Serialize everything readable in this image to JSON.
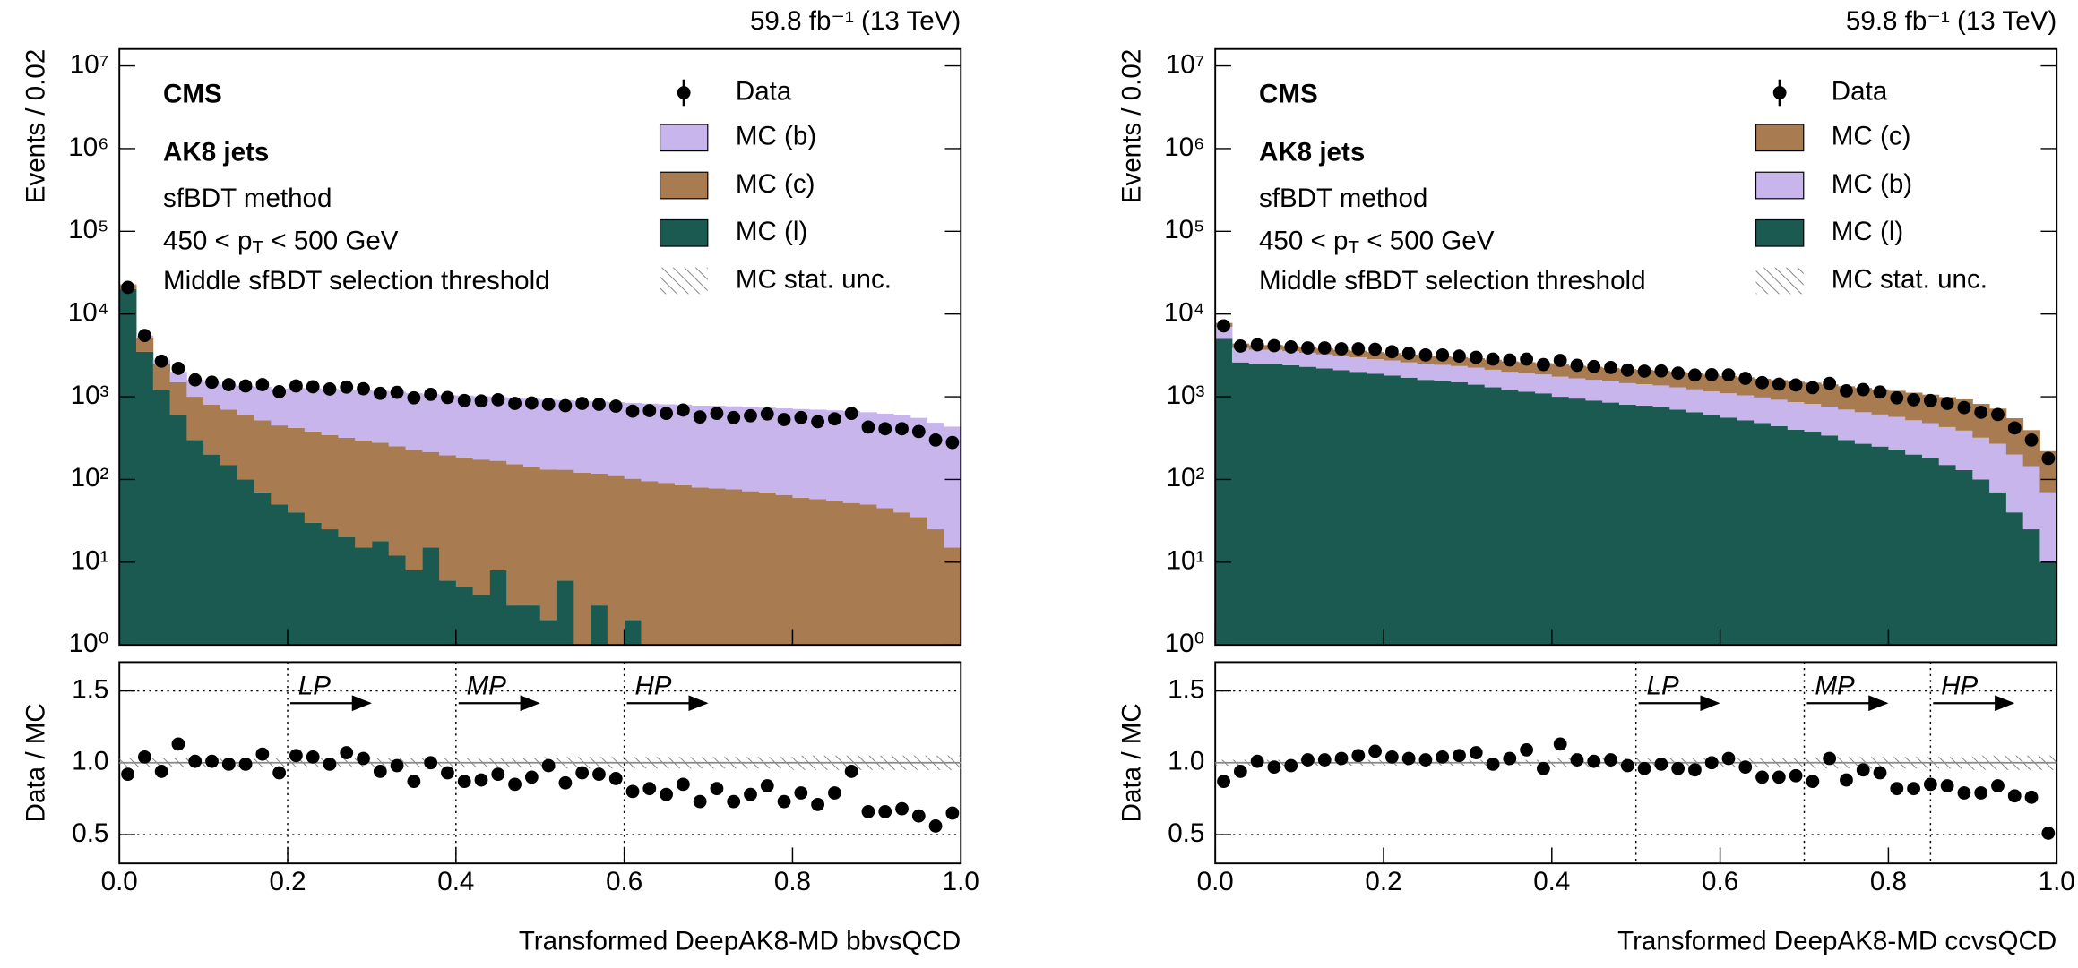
{
  "chart_data": [
    {
      "type": "histogram",
      "stacked": true,
      "yscale": "log",
      "lumi": "59.8 fb⁻¹ (13 TeV)",
      "experiment": "CMS",
      "jet_label": "AK8 jets",
      "method": "sfBDT method",
      "pt_text": [
        "450 < p",
        "T",
        " < 500 GeV"
      ],
      "selection": "Middle sfBDT selection threshold",
      "ylabel": "Events / 0.02",
      "xlabel": "Transformed DeepAK8-MD bbvsQCD",
      "bins": [
        0,
        0.02,
        0.04,
        0.06,
        0.08,
        0.1,
        0.12,
        0.14,
        0.16,
        0.18,
        0.2,
        0.22,
        0.24,
        0.26,
        0.28,
        0.3,
        0.32,
        0.34,
        0.36,
        0.38,
        0.4,
        0.42,
        0.44,
        0.46,
        0.48,
        0.5,
        0.52,
        0.54,
        0.56,
        0.58,
        0.6,
        0.62,
        0.64,
        0.66,
        0.68,
        0.7,
        0.72,
        0.74,
        0.76,
        0.78,
        0.8,
        0.82,
        0.84,
        0.86,
        0.88,
        0.9,
        0.92,
        0.94,
        0.96,
        0.98,
        1
      ],
      "xlim": [
        0,
        1
      ],
      "xticks": [
        {
          "value": 0,
          "label": "0.0"
        },
        0.2,
        0.4,
        0.6,
        0.8,
        {
          "value": 1,
          "label": "1.0"
        }
      ],
      "ylim": [
        1,
        16000000
      ],
      "yticks": [
        {
          "value": 1,
          "label": "10⁰"
        },
        {
          "value": 10,
          "label": "10¹"
        },
        {
          "value": 100,
          "label": "10²"
        },
        {
          "value": 1000,
          "label": "10³"
        },
        {
          "value": 10000,
          "label": "10⁴"
        },
        {
          "value": 100000,
          "label": "10⁵"
        },
        {
          "value": 1000000,
          "label": "10⁶"
        },
        {
          "value": 10000000,
          "label": "10⁷"
        }
      ],
      "series": [
        {
          "name": "MC (l)",
          "color": "#1b5a50",
          "values": [
            20000,
            3500,
            1200,
            600,
            300,
            200,
            150,
            100,
            70,
            50,
            40,
            30,
            25,
            20,
            15,
            18,
            12,
            8,
            15,
            6,
            5,
            4,
            8,
            3,
            3,
            2,
            6,
            1,
            3,
            0,
            2,
            0,
            1,
            0,
            0,
            0,
            1,
            0,
            0,
            0,
            0,
            0,
            0,
            0,
            0,
            0,
            0,
            0,
            0,
            0
          ]
        },
        {
          "name": "MC (c)",
          "color": "#a87b50",
          "values": [
            2500,
            1600,
            1300,
            900,
            700,
            600,
            550,
            500,
            450,
            400,
            380,
            350,
            320,
            300,
            280,
            260,
            240,
            220,
            200,
            190,
            180,
            170,
            160,
            150,
            140,
            130,
            125,
            120,
            115,
            110,
            100,
            95,
            90,
            85,
            80,
            78,
            75,
            72,
            70,
            65,
            60,
            58,
            55,
            52,
            50,
            45,
            40,
            35,
            25,
            15
          ]
        },
        {
          "name": "MC (b)",
          "color": "#c7b5ec",
          "values": [
            500,
            400,
            300,
            500,
            600,
            700,
            700,
            750,
            800,
            800,
            850,
            880,
            900,
            900,
            920,
            900,
            900,
            880,
            860,
            850,
            850,
            840,
            830,
            820,
            800,
            790,
            780,
            770,
            760,
            750,
            740,
            730,
            720,
            720,
            700,
            700,
            690,
            680,
            670,
            660,
            650,
            640,
            630,
            620,
            600,
            580,
            560,
            520,
            460,
            420
          ]
        }
      ],
      "data": {
        "name": "Data",
        "color": "#000000",
        "values": [
          21000,
          5500,
          2700,
          2200,
          1600,
          1500,
          1400,
          1350,
          1400,
          1150,
          1350,
          1320,
          1240,
          1310,
          1250,
          1100,
          1130,
          970,
          1070,
          980,
          900,
          890,
          920,
          830,
          840,
          810,
          780,
          830,
          810,
          770,
          670,
          680,
          630,
          690,
          570,
          630,
          560,
          590,
          620,
          530,
          560,
          500,
          540,
          630,
          430,
          410,
          410,
          380,
          300,
          280
        ]
      },
      "unc_label": "MC stat. unc.",
      "ratio": {
        "ylabel": "Data / MC",
        "ylim": [
          0.3,
          1.7
        ],
        "yticks": [
          0.5,
          {
            "value": 1,
            "label": "1.0"
          },
          1.5
        ],
        "grid": true,
        "values": [
          0.92,
          1.04,
          0.94,
          1.13,
          1.01,
          1.01,
          0.99,
          0.99,
          1.06,
          0.93,
          1.05,
          1.04,
          0.99,
          1.07,
          1.03,
          0.94,
          0.98,
          0.87,
          1.0,
          0.93,
          0.87,
          0.88,
          0.92,
          0.85,
          0.9,
          0.98,
          0.86,
          0.93,
          0.92,
          0.89,
          0.8,
          0.82,
          0.78,
          0.85,
          0.73,
          0.82,
          0.73,
          0.78,
          0.84,
          0.73,
          0.79,
          0.71,
          0.79,
          0.94,
          0.66,
          0.66,
          0.68,
          0.63,
          0.56,
          0.65
        ],
        "unc": [
          0.03,
          0.03,
          0.03,
          0.03,
          0.03,
          0.03,
          0.03,
          0.03,
          0.03,
          0.03,
          0.03,
          0.03,
          0.03,
          0.03,
          0.03,
          0.03,
          0.03,
          0.03,
          0.03,
          0.03,
          0.03,
          0.03,
          0.03,
          0.03,
          0.03,
          0.04,
          0.04,
          0.04,
          0.04,
          0.04,
          0.04,
          0.04,
          0.04,
          0.04,
          0.04,
          0.04,
          0.04,
          0.04,
          0.04,
          0.04,
          0.05,
          0.05,
          0.05,
          0.05,
          0.05,
          0.05,
          0.05,
          0.05,
          0.05,
          0.05
        ]
      },
      "regions": [
        {
          "x": 0.2,
          "label": "LP"
        },
        {
          "x": 0.4,
          "label": "MP"
        },
        {
          "x": 0.6,
          "label": "HP"
        }
      ]
    },
    {
      "type": "histogram",
      "stacked": true,
      "yscale": "log",
      "lumi": "59.8 fb⁻¹ (13 TeV)",
      "experiment": "CMS",
      "jet_label": "AK8 jets",
      "method": "sfBDT method",
      "pt_text": [
        "450 < p",
        "T",
        " < 500 GeV"
      ],
      "selection": "Middle sfBDT selection threshold",
      "ylabel": "Events / 0.02",
      "xlabel": "Transformed DeepAK8-MD ccvsQCD",
      "bins": [
        0,
        0.02,
        0.04,
        0.06,
        0.08,
        0.1,
        0.12,
        0.14,
        0.16,
        0.18,
        0.2,
        0.22,
        0.24,
        0.26,
        0.28,
        0.3,
        0.32,
        0.34,
        0.36,
        0.38,
        0.4,
        0.42,
        0.44,
        0.46,
        0.48,
        0.5,
        0.52,
        0.54,
        0.56,
        0.58,
        0.6,
        0.62,
        0.64,
        0.66,
        0.68,
        0.7,
        0.72,
        0.74,
        0.76,
        0.78,
        0.8,
        0.82,
        0.84,
        0.86,
        0.88,
        0.9,
        0.92,
        0.94,
        0.96,
        0.98,
        1
      ],
      "xlim": [
        0,
        1
      ],
      "xticks": [
        {
          "value": 0,
          "label": "0.0"
        },
        0.2,
        0.4,
        0.6,
        0.8,
        {
          "value": 1,
          "label": "1.0"
        }
      ],
      "ylim": [
        1,
        16000000
      ],
      "yticks": [
        {
          "value": 1,
          "label": "10⁰"
        },
        {
          "value": 10,
          "label": "10¹"
        },
        {
          "value": 100,
          "label": "10²"
        },
        {
          "value": 1000,
          "label": "10³"
        },
        {
          "value": 10000,
          "label": "10⁴"
        },
        {
          "value": 100000,
          "label": "10⁵"
        },
        {
          "value": 1000000,
          "label": "10⁶"
        },
        {
          "value": 10000000,
          "label": "10⁷"
        }
      ],
      "series": [
        {
          "name": "MC (l)",
          "color": "#1b5a50",
          "values": [
            5000,
            2600,
            2500,
            2500,
            2400,
            2300,
            2200,
            2100,
            2000,
            1900,
            1800,
            1700,
            1600,
            1550,
            1500,
            1400,
            1300,
            1200,
            1150,
            1100,
            1000,
            950,
            900,
            850,
            800,
            780,
            750,
            700,
            650,
            600,
            560,
            520,
            480,
            440,
            400,
            380,
            340,
            300,
            270,
            250,
            230,
            200,
            180,
            150,
            130,
            100,
            70,
            40,
            25,
            10
          ]
        },
        {
          "name": "MC (b)",
          "color": "#c7b5ec",
          "values": [
            2000,
            1300,
            1200,
            1200,
            1150,
            1100,
            1050,
            1000,
            1000,
            950,
            950,
            900,
            900,
            880,
            850,
            850,
            820,
            800,
            780,
            760,
            750,
            720,
            700,
            680,
            660,
            640,
            620,
            600,
            580,
            560,
            540,
            520,
            500,
            480,
            460,
            440,
            420,
            400,
            380,
            360,
            340,
            320,
            300,
            280,
            260,
            220,
            200,
            160,
            120,
            60
          ]
        },
        {
          "name": "MC (c)",
          "color": "#a87b50",
          "values": [
            800,
            500,
            500,
            520,
            540,
            560,
            580,
            600,
            600,
            620,
            620,
            640,
            650,
            660,
            660,
            670,
            680,
            680,
            690,
            690,
            700,
            700,
            700,
            700,
            700,
            700,
            700,
            700,
            690,
            690,
            680,
            680,
            670,
            670,
            660,
            660,
            650,
            640,
            630,
            620,
            610,
            600,
            580,
            560,
            540,
            500,
            450,
            350,
            250,
            150
          ]
        }
      ],
      "data": {
        "name": "Data",
        "color": "#000000",
        "values": [
          7200,
          4100,
          4250,
          4150,
          4000,
          3900,
          3900,
          3800,
          3800,
          3750,
          3500,
          3350,
          3200,
          3200,
          3100,
          3000,
          2850,
          2780,
          2850,
          2450,
          2750,
          2400,
          2320,
          2260,
          2100,
          2040,
          2050,
          1930,
          1830,
          1850,
          1840,
          1670,
          1480,
          1420,
          1390,
          1290,
          1450,
          1180,
          1220,
          1140,
          970,
          920,
          900,
          830,
          740,
          650,
          610,
          420,
          300,
          180
        ]
      },
      "unc_label": "MC stat. unc.",
      "ratio": {
        "ylabel": "Data / MC",
        "ylim": [
          0.3,
          1.7
        ],
        "yticks": [
          0.5,
          {
            "value": 1,
            "label": "1.0"
          },
          1.5
        ],
        "grid": true,
        "values": [
          0.87,
          0.94,
          1.01,
          0.97,
          0.98,
          1.02,
          1.02,
          1.03,
          1.05,
          1.08,
          1.04,
          1.03,
          1.02,
          1.04,
          1.05,
          1.07,
          0.99,
          1.03,
          1.09,
          0.96,
          1.13,
          1.02,
          1.01,
          1.02,
          0.98,
          0.96,
          0.99,
          0.96,
          0.95,
          1.0,
          1.03,
          0.97,
          0.9,
          0.9,
          0.91,
          0.87,
          1.03,
          0.88,
          0.95,
          0.93,
          0.82,
          0.82,
          0.85,
          0.84,
          0.79,
          0.79,
          0.84,
          0.77,
          0.76,
          0.51
        ],
        "unc": [
          0.02,
          0.02,
          0.02,
          0.02,
          0.02,
          0.02,
          0.02,
          0.02,
          0.02,
          0.02,
          0.02,
          0.02,
          0.02,
          0.02,
          0.02,
          0.02,
          0.02,
          0.02,
          0.02,
          0.02,
          0.03,
          0.03,
          0.03,
          0.03,
          0.03,
          0.03,
          0.03,
          0.03,
          0.03,
          0.03,
          0.03,
          0.03,
          0.03,
          0.03,
          0.03,
          0.04,
          0.04,
          0.04,
          0.04,
          0.04,
          0.04,
          0.04,
          0.04,
          0.04,
          0.04,
          0.05,
          0.05,
          0.05,
          0.05,
          0.05
        ]
      },
      "regions": [
        {
          "x": 0.5,
          "label": "LP"
        },
        {
          "x": 0.7,
          "label": "MP"
        },
        {
          "x": 0.85,
          "label": "HP"
        }
      ]
    }
  ]
}
